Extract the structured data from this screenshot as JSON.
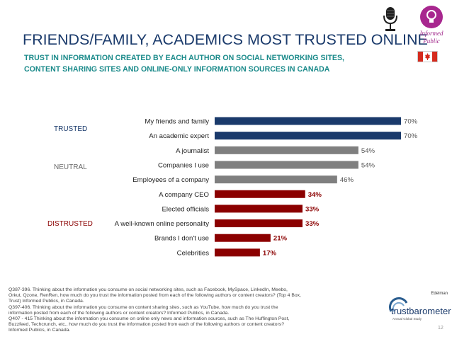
{
  "title": "FRIENDS/FAMILY, ACADEMICS MOST TRUSTED ONLINE",
  "subtitle_lines": [
    "TRUST IN INFORMATION CREATED BY EACH AUTHOR ON SOCIAL NETWORKING SITES,",
    "CONTENT SHARING SITES AND ONLINE-ONLY INFORMATION SOURCES IN CANADA"
  ],
  "badge": {
    "line1": "Informed",
    "line2": "Public",
    "icon": "lightbulb-icon"
  },
  "groups": [
    {
      "label": "TRUSTED",
      "color": "#1a3a6b"
    },
    {
      "label": "NEUTRAL",
      "color": "#666666"
    },
    {
      "label": "DISTRUSTED",
      "color": "#8b0000"
    }
  ],
  "colors": {
    "trusted": "#1a3a6b",
    "neutral": "#7f7f7f",
    "distrusted": "#8b0000",
    "title": "#1a3a6b",
    "subtitle": "#1a8a8a"
  },
  "chart_data": {
    "type": "bar",
    "orientation": "horizontal",
    "categories": [
      "My friends and family",
      "An academic expert",
      "A journalist",
      "Companies I use",
      "Employees of a company",
      "A company CEO",
      "Elected officials",
      "A well-known online personality",
      "Brands I don't use",
      "Celebrities"
    ],
    "values": [
      70,
      70,
      54,
      54,
      46,
      34,
      33,
      33,
      21,
      17
    ],
    "data_labels": [
      "70%",
      "70%",
      "54%",
      "54%",
      "46%",
      "34%",
      "33%",
      "33%",
      "21%",
      "17%"
    ],
    "group": [
      "trusted",
      "trusted",
      "neutral",
      "neutral",
      "neutral",
      "distrusted",
      "distrusted",
      "distrusted",
      "distrusted",
      "distrusted"
    ],
    "xlim": [
      0,
      70
    ],
    "unit": "%",
    "grid": false
  },
  "footnote_lines": [
    "Q387-396. Thinking about the information you consume on social networking sites, such as Facebook, MySpace, LinkedIn, Meebo,",
    "Orkut, Qzone, RenRen, how much do you trust the information posted from each of the following authors or content creators? (Top 4 Box,",
    "Trust) Informed Publics, in Canada.",
    "Q397-406. Thinking about the information you consume on content sharing sites, such as YouTube, how much do you trust the",
    "information posted from each of the following authors or content creators? Informed Publics, in Canada.",
    "Q407 - 415 Thinking about the information you consume on online only news and information sources, such as The Huffington Post,",
    "Buzzfeed, Techcrunch, etc., how much do you trust the information posted from each of the following authors or content creators?",
    "Informed Publics, in Canada."
  ],
  "logo": {
    "brand": "Edelman",
    "name": "trustbarometer",
    "tagline": "Annual Global Study"
  },
  "page_number": "12"
}
